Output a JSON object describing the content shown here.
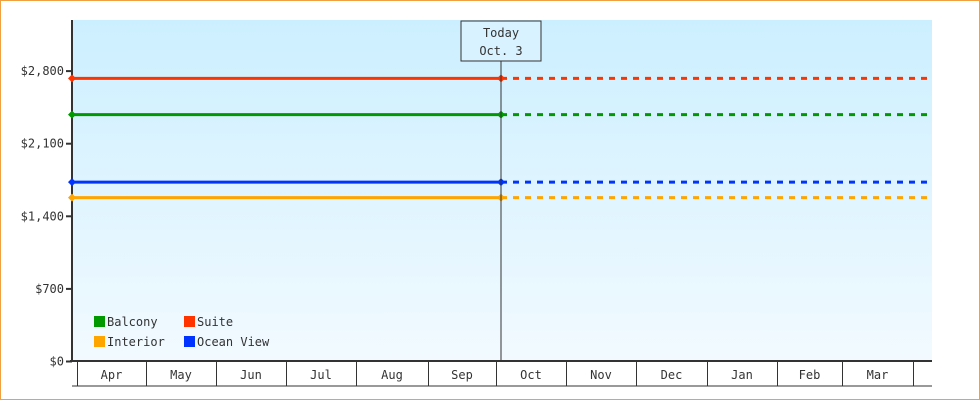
{
  "chart_data": {
    "type": "line",
    "categories": [
      "Apr",
      "May",
      "Jun",
      "Jul",
      "Aug",
      "Sep",
      "Oct",
      "Nov",
      "Dec",
      "Jan",
      "Feb",
      "Mar"
    ],
    "ylim": [
      0,
      3150
    ],
    "yticks": [
      0,
      700,
      1400,
      2100,
      2800
    ],
    "ytick_labels": [
      "$0",
      "$700",
      "$1,400",
      "$2,100",
      "$2,800"
    ],
    "grid": false,
    "legend_position": "bottom-left",
    "today": {
      "line1": "Today",
      "line2": "Oct. 3"
    },
    "series": [
      {
        "name": "Balcony",
        "color": "#009900",
        "value": 2380
      },
      {
        "name": "Suite",
        "color": "#ff3300",
        "value": 2730
      },
      {
        "name": "Interior",
        "color": "#ffa500",
        "value": 1580
      },
      {
        "name": "Ocean View",
        "color": "#0033ff",
        "value": 1730
      }
    ],
    "note_style": "solid through today, dotted after"
  }
}
